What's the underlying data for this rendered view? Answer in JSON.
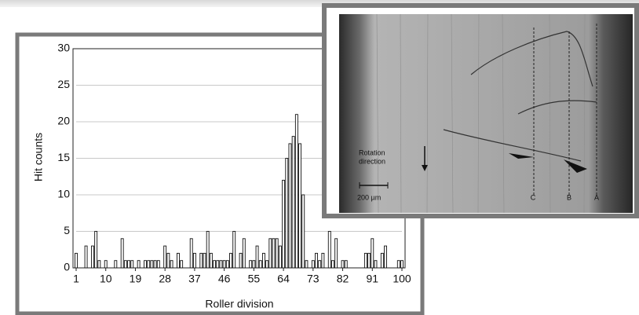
{
  "chart_data": {
    "type": "bar",
    "x_label": "Roller division",
    "y_label": "Hit counts",
    "x": [
      1,
      2,
      3,
      4,
      5,
      6,
      7,
      8,
      9,
      10,
      11,
      12,
      13,
      14,
      15,
      16,
      17,
      18,
      19,
      20,
      21,
      22,
      23,
      24,
      25,
      26,
      27,
      28,
      29,
      30,
      31,
      32,
      33,
      34,
      35,
      36,
      37,
      38,
      39,
      40,
      41,
      42,
      43,
      44,
      45,
      46,
      47,
      48,
      49,
      50,
      51,
      52,
      53,
      54,
      55,
      56,
      57,
      58,
      59,
      60,
      61,
      62,
      63,
      64,
      65,
      66,
      67,
      68,
      69,
      70,
      71,
      72,
      73,
      74,
      75,
      76,
      77,
      78,
      79,
      80,
      81,
      82,
      83,
      84,
      85,
      86,
      87,
      88,
      89,
      90,
      91,
      92,
      93,
      94,
      95,
      96,
      97,
      98,
      99,
      100
    ],
    "values": [
      2,
      0,
      0,
      3,
      0,
      3,
      5,
      1,
      0,
      1,
      0,
      0,
      1,
      0,
      4,
      1,
      1,
      1,
      0,
      1,
      0,
      1,
      1,
      1,
      1,
      1,
      0,
      3,
      2,
      1,
      0,
      2,
      1,
      0,
      0,
      4,
      2,
      0,
      2,
      2,
      5,
      2,
      1,
      1,
      1,
      1,
      1,
      2,
      5,
      0,
      2,
      4,
      0,
      1,
      1,
      3,
      1,
      2,
      1,
      4,
      4,
      4,
      3,
      12,
      15,
      17,
      18,
      21,
      17,
      10,
      1,
      0,
      1,
      2,
      1,
      2,
      0,
      5,
      1,
      4,
      0,
      1,
      1,
      0,
      0,
      0,
      0,
      0,
      2,
      2,
      4,
      1,
      0,
      2,
      3,
      0,
      0,
      0,
      1,
      1
    ],
    "color": "#ffffff",
    "xlim": [
      1,
      100
    ],
    "xticks": [
      1,
      10,
      19,
      28,
      37,
      46,
      55,
      64,
      73,
      82,
      91,
      100
    ],
    "ylim": [
      0,
      30
    ],
    "yticks": [
      0,
      5,
      10,
      15,
      20,
      25,
      30
    ],
    "grid": true,
    "annotations": [
      "Rotation",
      "direction",
      "200 µm",
      "C",
      "B",
      "A"
    ]
  }
}
